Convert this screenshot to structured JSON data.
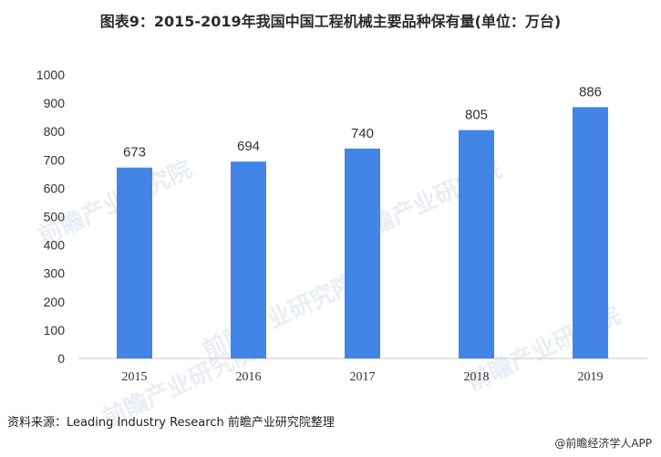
{
  "title": "图表9：2015-2019年我国中国工程机械主要品种保有量(单位：万台)",
  "chart_data": {
    "type": "bar",
    "categories": [
      "2015",
      "2016",
      "2017",
      "2018",
      "2019"
    ],
    "values": [
      673,
      694,
      740,
      805,
      886
    ],
    "data_labels": [
      "673",
      "694",
      "740",
      "805",
      "886"
    ],
    "ylim": [
      0,
      1000
    ],
    "yticks": [
      "0",
      "100",
      "200",
      "300",
      "400",
      "500",
      "600",
      "700",
      "800",
      "900",
      "1000"
    ],
    "xlabel": "",
    "ylabel": "",
    "grid": false,
    "bar_color": "#4285e6"
  },
  "source": "资料来源：Leading Industry Research 前瞻产业研究院整理",
  "brand": "@前瞻经济学人APP",
  "watermark": "前瞻产业研究院"
}
